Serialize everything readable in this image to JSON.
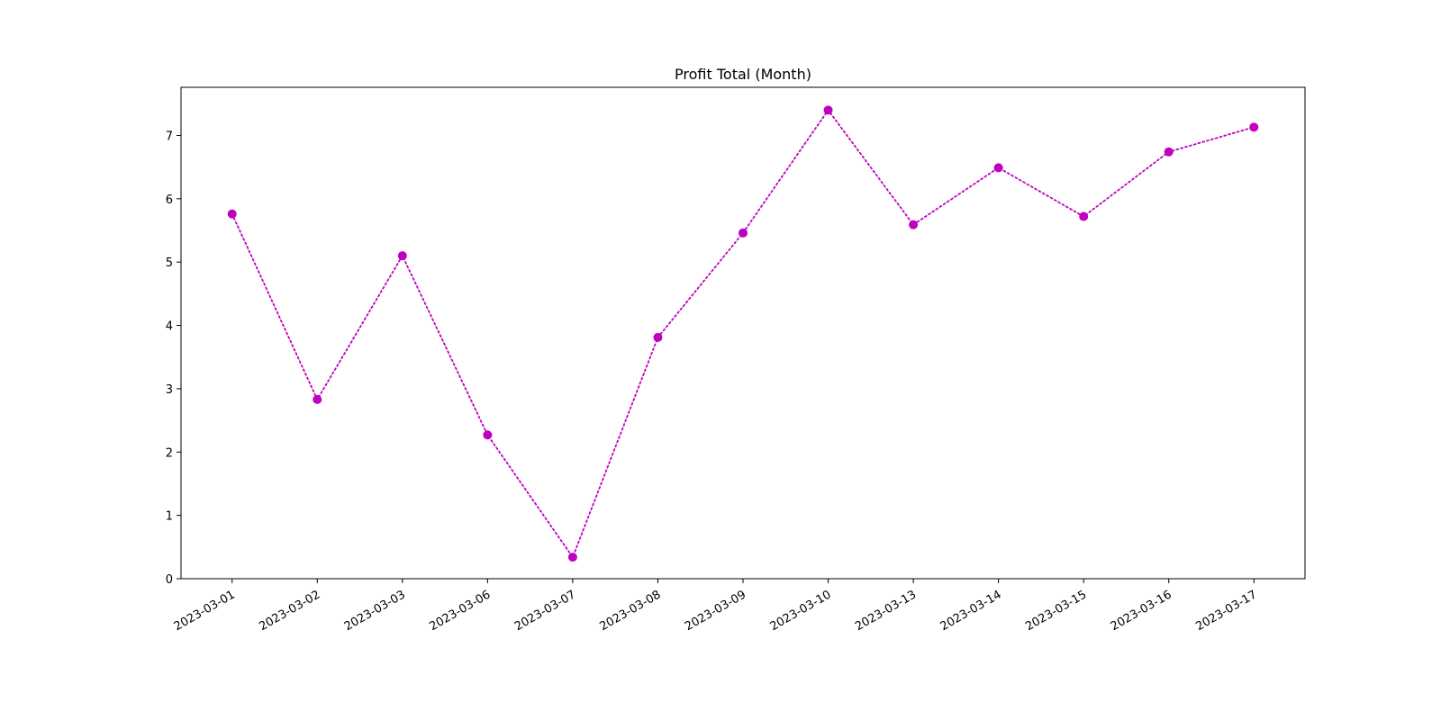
{
  "chart_data": {
    "type": "line",
    "title": "Profit Total (Month)",
    "xlabel": "",
    "ylabel": "",
    "x": [
      "2023-03-01",
      "2023-03-02",
      "2023-03-03",
      "2023-03-06",
      "2023-03-07",
      "2023-03-08",
      "2023-03-09",
      "2023-03-10",
      "2023-03-13",
      "2023-03-14",
      "2023-03-15",
      "2023-03-16",
      "2023-03-17"
    ],
    "series": [
      {
        "values": [
          5.76,
          2.83,
          5.1,
          2.27,
          0.34,
          3.81,
          5.46,
          7.4,
          5.59,
          6.49,
          5.72,
          6.74,
          7.13
        ],
        "color": "#bf00bf",
        "line_style": "dotted",
        "marker": "circle"
      }
    ],
    "yticks": [
      0,
      1,
      2,
      3,
      4,
      5,
      6,
      7
    ],
    "ylim": [
      0,
      7.76
    ],
    "grid": false,
    "legend": false
  }
}
